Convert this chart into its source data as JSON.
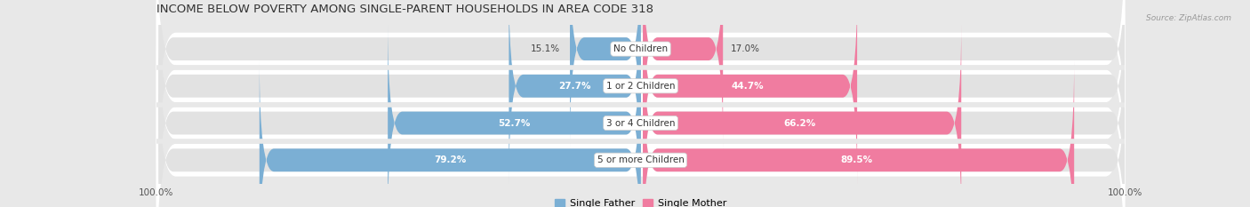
{
  "title": "INCOME BELOW POVERTY AMONG SINGLE-PARENT HOUSEHOLDS IN AREA CODE 318",
  "source": "Source: ZipAtlas.com",
  "categories": [
    "No Children",
    "1 or 2 Children",
    "3 or 4 Children",
    "5 or more Children"
  ],
  "single_father": [
    15.1,
    27.7,
    52.7,
    79.2
  ],
  "single_mother": [
    17.0,
    44.7,
    66.2,
    89.5
  ],
  "max_val": 100.0,
  "father_color": "#7bafd4",
  "mother_color": "#f07ca0",
  "bg_color": "#e8e8e8",
  "bar_bg_color": "#f5f5f5",
  "row_bg_color": "#ffffff",
  "title_fontsize": 9.5,
  "label_fontsize": 7.5,
  "cat_fontsize": 7.5,
  "axis_label_fontsize": 7.5,
  "legend_fontsize": 8.0,
  "bar_height": 0.62
}
